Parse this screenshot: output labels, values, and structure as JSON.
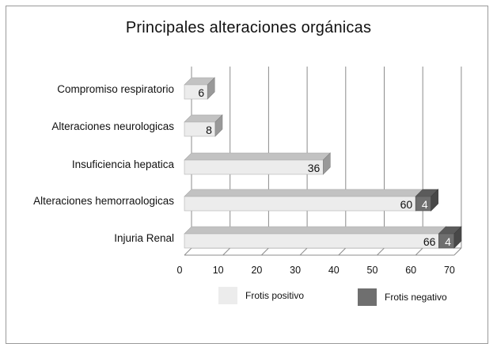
{
  "chart_data": {
    "type": "bar",
    "orientation": "horizontal",
    "stacked": true,
    "title": "Principales  alteraciones orgánicas",
    "categories": [
      "Compromiso respiratorio",
      "Alteraciones neurologicas",
      "Insuficiencia hepatica",
      "Alteraciones hemorraologicas",
      "Injuria Renal"
    ],
    "series": [
      {
        "name": "Frotis positivo",
        "values": [
          6,
          8,
          36,
          60,
          66
        ],
        "color": "#ececec"
      },
      {
        "name": "Frotis negativo",
        "values": [
          0,
          0,
          0,
          4,
          4
        ],
        "color": "#6f6f6f"
      }
    ],
    "data_labels": [
      [
        "6",
        "8",
        "36",
        "60",
        "66"
      ],
      [
        "",
        "",
        "",
        "4",
        "4"
      ]
    ],
    "xlim": [
      0,
      70
    ],
    "xticks": [
      "0",
      "10",
      "20",
      "30",
      "40",
      "50",
      "60",
      "70"
    ],
    "grid": true,
    "legend_position": "bottom"
  }
}
